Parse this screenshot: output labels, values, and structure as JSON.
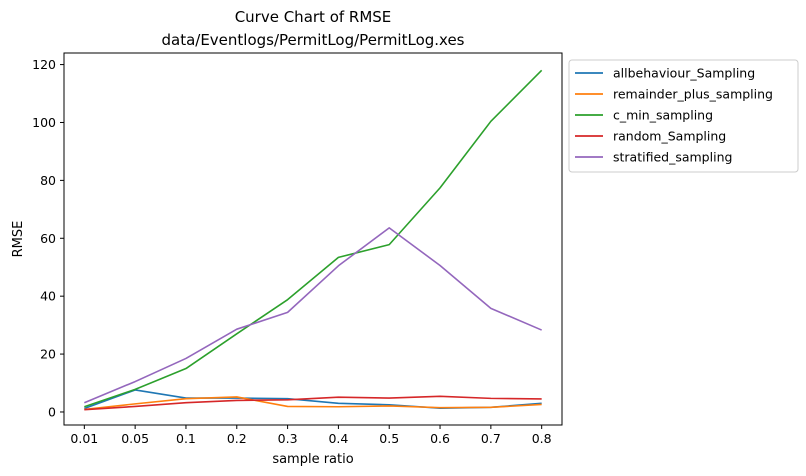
{
  "chart_data": {
    "type": "line",
    "title": "Curve Chart of RMSE",
    "subtitle": "data/Eventlogs/PermitLog/PermitLog.xes",
    "xlabel": "sample ratio",
    "ylabel": "RMSE",
    "categories": [
      "0.01",
      "0.05",
      "0.1",
      "0.2",
      "0.3",
      "0.4",
      "0.5",
      "0.6",
      "0.7",
      "0.8"
    ],
    "ylim": [
      -4.5,
      124
    ],
    "yticks": [
      0,
      20,
      40,
      60,
      80,
      100,
      120
    ],
    "grid": false,
    "legend_position": "outside-right-top",
    "series": [
      {
        "name": "allbehaviour_Sampling",
        "color": "#1f77b4",
        "values": [
          1.2,
          7.6,
          4.8,
          4.8,
          4.6,
          3.0,
          2.5,
          1.3,
          1.6,
          3.0
        ]
      },
      {
        "name": "remainder_plus_sampling",
        "color": "#ff7f0e",
        "values": [
          0.9,
          2.8,
          4.6,
          5.2,
          1.9,
          1.8,
          2.1,
          1.5,
          1.6,
          2.6
        ]
      },
      {
        "name": "c_min_sampling",
        "color": "#2ca02c",
        "values": [
          1.8,
          7.8,
          15.0,
          27.0,
          38.8,
          53.4,
          57.8,
          77.4,
          100.4,
          118.0
        ]
      },
      {
        "name": "random_Sampling",
        "color": "#d62728",
        "values": [
          0.8,
          1.9,
          3.2,
          4.0,
          4.2,
          5.1,
          4.8,
          5.4,
          4.7,
          4.5
        ]
      },
      {
        "name": "stratified_sampling",
        "color": "#9467bd",
        "values": [
          3.2,
          10.5,
          18.5,
          28.6,
          34.4,
          50.5,
          63.6,
          50.6,
          35.8,
          28.3
        ]
      }
    ]
  }
}
